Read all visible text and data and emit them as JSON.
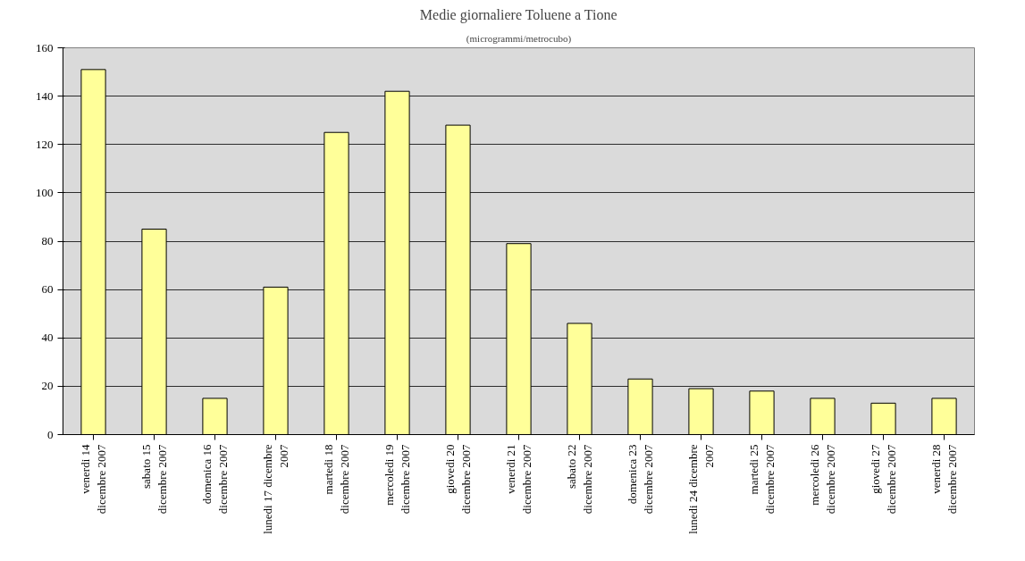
{
  "chart_data": {
    "type": "bar",
    "title": "Medie giornaliere Toluene a Tione",
    "subtitle": "(microgrammi/metrocubo)",
    "categories": [
      "venerdi 14\ndicembre 2007",
      "sabato 15\ndicembre 2007",
      "domenica 16\ndicembre 2007",
      "lunedi 17 dicembre\n2007",
      "martedi 18\ndicembre 2007",
      "mercoledi 19\ndicembre 2007",
      "giovedi 20\ndicembre 2007",
      "venerdi 21\ndicembre 2007",
      "sabato 22\ndicembre 2007",
      "domenica 23\ndicembre 2007",
      "lunedi 24 dicembre\n2007",
      "martedi 25\ndicembre 2007",
      "mercoledi 26\ndicembre 2007",
      "giovedi 27\ndicembre 2007",
      "venerdi 28\ndicembre 2007"
    ],
    "values": [
      151,
      85,
      15,
      61,
      125,
      142,
      128,
      79,
      46,
      23,
      19,
      18,
      15,
      13,
      15
    ],
    "color": "#ffff99",
    "ylim": [
      0,
      160
    ],
    "yticks": [
      0,
      20,
      40,
      60,
      80,
      100,
      120,
      140,
      160
    ],
    "grid": "y"
  }
}
